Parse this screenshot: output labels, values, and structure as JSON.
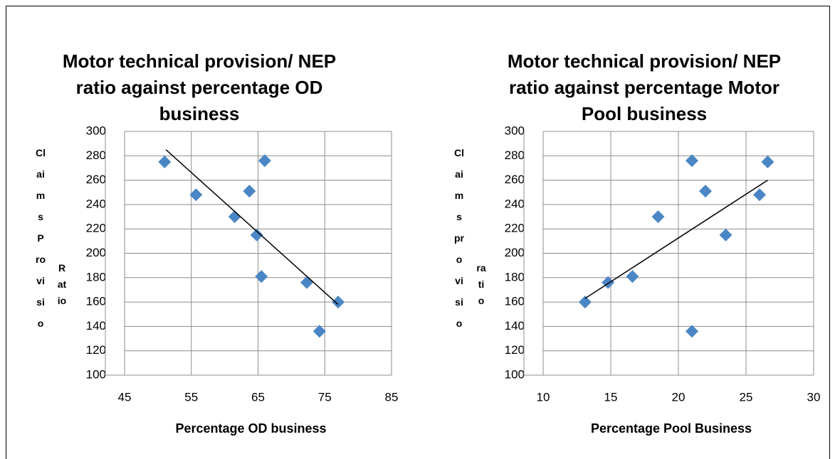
{
  "chart_data": [
    {
      "type": "scatter",
      "title": "Motor technical provision/ NEP ratio against percentage OD business",
      "x_label": "Percentage OD business",
      "y_label": [
        "Claims Provisio",
        "Ratio"
      ],
      "series": [
        {
          "color": "#4a86c5",
          "x": [
            51,
            55.7,
            61.5,
            63.7,
            64.8,
            65.5,
            66,
            72.3,
            74.2,
            77
          ],
          "values": [
            275,
            248,
            230,
            251,
            215,
            181,
            276,
            176,
            136,
            160
          ]
        }
      ],
      "trendline": {
        "color": "#000000",
        "x": [
          51.2,
          77
        ],
        "values": [
          285,
          158
        ]
      },
      "xlim": [
        45,
        85
      ],
      "xticks": [
        45,
        55,
        65,
        75,
        85
      ],
      "ylim": [
        100,
        300
      ],
      "yticks": [
        100,
        120,
        140,
        160,
        180,
        200,
        220,
        240,
        260,
        280,
        300
      ],
      "grid": true
    },
    {
      "type": "scatter",
      "title": "Motor technical provision/ NEP ratio against percentage Motor Pool business",
      "x_label": "Percentage Pool Business",
      "y_label": [
        "Claims provisio",
        "ratio"
      ],
      "series": [
        {
          "color": "#4a86c5",
          "x": [
            13.1,
            14.8,
            16.6,
            18.5,
            21,
            21,
            22,
            23.5,
            26,
            26.6
          ],
          "values": [
            160,
            176,
            181,
            230,
            276,
            136,
            251,
            215,
            248,
            275
          ]
        }
      ],
      "trendline": {
        "color": "#000000",
        "x": [
          13.1,
          26.6
        ],
        "values": [
          163,
          260
        ]
      },
      "xlim": [
        10,
        30
      ],
      "xticks": [
        10,
        15,
        20,
        25,
        30
      ],
      "ylim": [
        100,
        300
      ],
      "yticks": [
        100,
        120,
        140,
        160,
        180,
        200,
        220,
        240,
        260,
        280,
        300
      ],
      "grid": true
    }
  ]
}
